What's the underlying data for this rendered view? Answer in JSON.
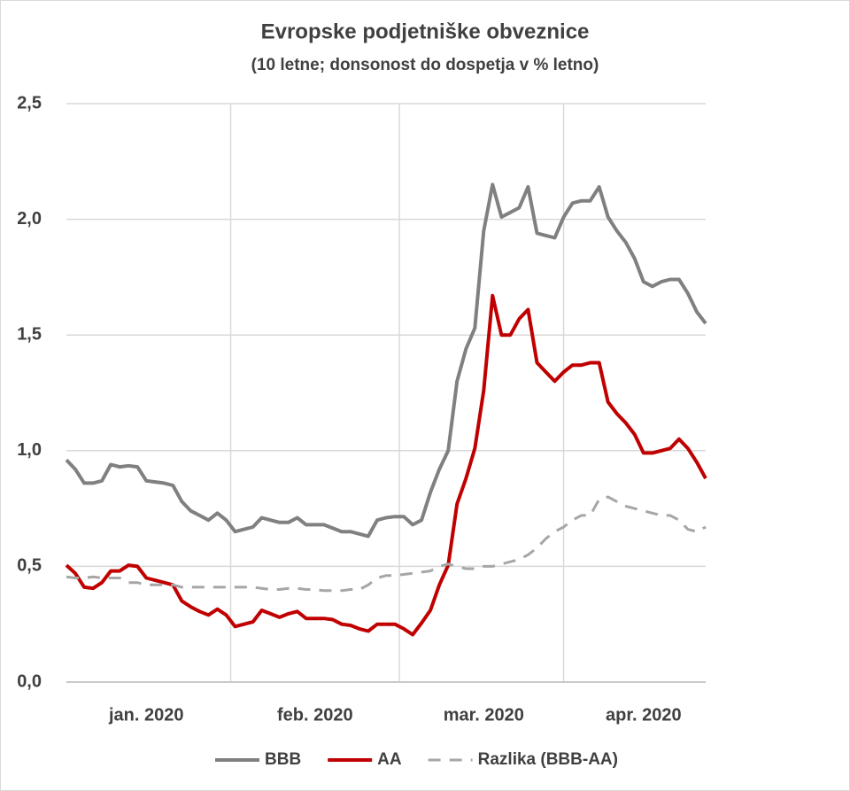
{
  "chart_data": {
    "type": "line",
    "title": "Evropske podjetniške obveznice",
    "subtitle": "(10 letne; donsonost do dospetja v % letno)",
    "categories": [
      null,
      null,
      null,
      null,
      null,
      null,
      null,
      null,
      null,
      "jan. 2020",
      null,
      null,
      null,
      null,
      null,
      null,
      null,
      null,
      null,
      null,
      null,
      null,
      null,
      null,
      null,
      null,
      null,
      null,
      "feb. 2020",
      null,
      null,
      null,
      null,
      null,
      null,
      null,
      null,
      null,
      null,
      null,
      null,
      null,
      null,
      null,
      null,
      null,
      null,
      "mar. 2020",
      null,
      null,
      null,
      null,
      null,
      null,
      null,
      null,
      null,
      null,
      null,
      null,
      null,
      null,
      null,
      null,
      null,
      "apr. 2020",
      null,
      null,
      null,
      null,
      null,
      null,
      null
    ],
    "series": [
      {
        "name": "BBB",
        "color": "#808080",
        "dashed": false,
        "values": [
          0.96,
          0.92,
          0.86,
          0.86,
          0.87,
          0.94,
          0.93,
          0.935,
          0.93,
          0.87,
          0.865,
          0.86,
          0.85,
          0.78,
          0.74,
          0.72,
          0.7,
          0.73,
          0.7,
          0.65,
          0.66,
          0.67,
          0.71,
          0.7,
          0.69,
          0.69,
          0.71,
          0.68,
          0.68,
          0.68,
          0.665,
          0.65,
          0.65,
          0.64,
          0.63,
          0.7,
          0.71,
          0.715,
          0.715,
          0.68,
          0.7,
          0.82,
          0.92,
          1.0,
          1.3,
          1.44,
          1.53,
          1.95,
          2.15,
          2.01,
          2.03,
          2.05,
          2.14,
          1.94,
          1.93,
          1.92,
          2.01,
          2.07,
          2.08,
          2.08,
          2.14,
          2.01,
          1.95,
          1.9,
          1.83,
          1.73,
          1.71,
          1.73,
          1.74,
          1.74,
          1.68,
          1.6,
          1.55
        ]
      },
      {
        "name": "AA",
        "color": "#c00000",
        "dashed": false,
        "values": [
          0.505,
          0.47,
          0.41,
          0.405,
          0.43,
          0.48,
          0.48,
          0.505,
          0.5,
          0.45,
          0.44,
          0.43,
          0.42,
          0.35,
          0.325,
          0.305,
          0.29,
          0.315,
          0.29,
          0.24,
          0.25,
          0.26,
          0.31,
          0.295,
          0.28,
          0.295,
          0.305,
          0.275,
          0.275,
          0.275,
          0.27,
          0.25,
          0.245,
          0.23,
          0.22,
          0.25,
          0.25,
          0.25,
          0.23,
          0.205,
          0.255,
          0.31,
          0.42,
          0.505,
          0.77,
          0.88,
          1.01,
          1.26,
          1.67,
          1.5,
          1.5,
          1.57,
          1.61,
          1.38,
          1.34,
          1.3,
          1.34,
          1.37,
          1.37,
          1.38,
          1.38,
          1.21,
          1.16,
          1.12,
          1.07,
          0.99,
          0.99,
          1.0,
          1.01,
          1.05,
          1.01,
          0.95,
          0.88
        ]
      },
      {
        "name": "Razlika (BBB-AA)",
        "color": "#a6a6a6",
        "dashed": true,
        "values": [
          0.455,
          0.45,
          0.45,
          0.455,
          0.45,
          0.45,
          0.45,
          0.43,
          0.43,
          0.42,
          0.42,
          0.42,
          0.42,
          0.41,
          0.41,
          0.41,
          0.41,
          0.41,
          0.41,
          0.41,
          0.41,
          0.41,
          0.405,
          0.4,
          0.4,
          0.405,
          0.405,
          0.4,
          0.4,
          0.395,
          0.395,
          0.395,
          0.4,
          0.4,
          0.42,
          0.45,
          0.46,
          0.46,
          0.465,
          0.47,
          0.475,
          0.48,
          0.5,
          0.51,
          0.5,
          0.49,
          0.49,
          0.5,
          0.5,
          0.51,
          0.52,
          0.53,
          0.55,
          0.58,
          0.62,
          0.65,
          0.67,
          0.7,
          0.72,
          0.72,
          0.79,
          0.8,
          0.78,
          0.76,
          0.75,
          0.74,
          0.73,
          0.72,
          0.72,
          0.7,
          0.66,
          0.65,
          0.67
        ]
      }
    ],
    "ylim": [
      0,
      2.5
    ],
    "yticks": [
      {
        "value": 0,
        "label": "0,0"
      },
      {
        "value": 0.5,
        "label": "0,5"
      },
      {
        "value": 1,
        "label": "1,0"
      },
      {
        "value": 1.5,
        "label": "1,5"
      },
      {
        "value": 2,
        "label": "2,0"
      },
      {
        "value": 2.5,
        "label": "2,5"
      }
    ],
    "grid": true,
    "legend": "bottom"
  }
}
